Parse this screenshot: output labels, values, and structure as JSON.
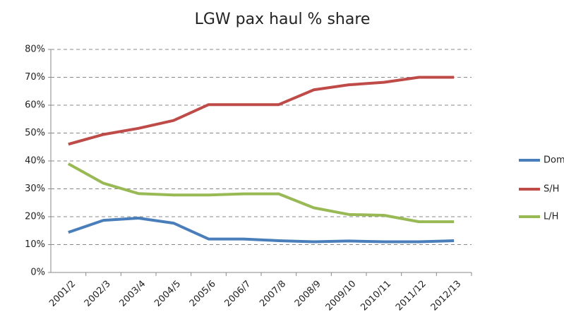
{
  "chart_data": {
    "type": "line",
    "title": "LGW pax haul % share",
    "categories": [
      "2001/2",
      "2002/3",
      "2003/4",
      "2004/5",
      "2005/6",
      "2006/7",
      "2007/8",
      "2008/9",
      "2009/10",
      "2010/11",
      "2011/12",
      "2012/13"
    ],
    "series": [
      {
        "name": "Dom",
        "color": "#4a7ebb",
        "values": [
          14.4,
          18.7,
          19.5,
          17.7,
          12,
          12,
          11.4,
          11,
          11.3,
          11,
          11,
          11.4
        ]
      },
      {
        "name": "S/H",
        "color": "#be4b48",
        "values": [
          46,
          49.5,
          51.7,
          54.5,
          60.2,
          60.2,
          60.2,
          65.5,
          67.3,
          68.2,
          70,
          70
        ]
      },
      {
        "name": "L/H",
        "color": "#98b954",
        "values": [
          39,
          32,
          28.3,
          27.8,
          27.8,
          28.2,
          28.2,
          23.2,
          20.8,
          20.5,
          18.2,
          18.2
        ]
      }
    ],
    "ylim": [
      0,
      80
    ],
    "yticks": [
      {
        "value": 0,
        "label": "0%"
      },
      {
        "value": 10,
        "label": "10%"
      },
      {
        "value": 20,
        "label": "20%"
      },
      {
        "value": 30,
        "label": "30%"
      },
      {
        "value": 40,
        "label": "40%"
      },
      {
        "value": 50,
        "label": "50%"
      },
      {
        "value": 60,
        "label": "60%"
      },
      {
        "value": 70,
        "label": "70%"
      },
      {
        "value": 80,
        "label": "80%"
      }
    ],
    "grid": true,
    "legend": "right"
  }
}
